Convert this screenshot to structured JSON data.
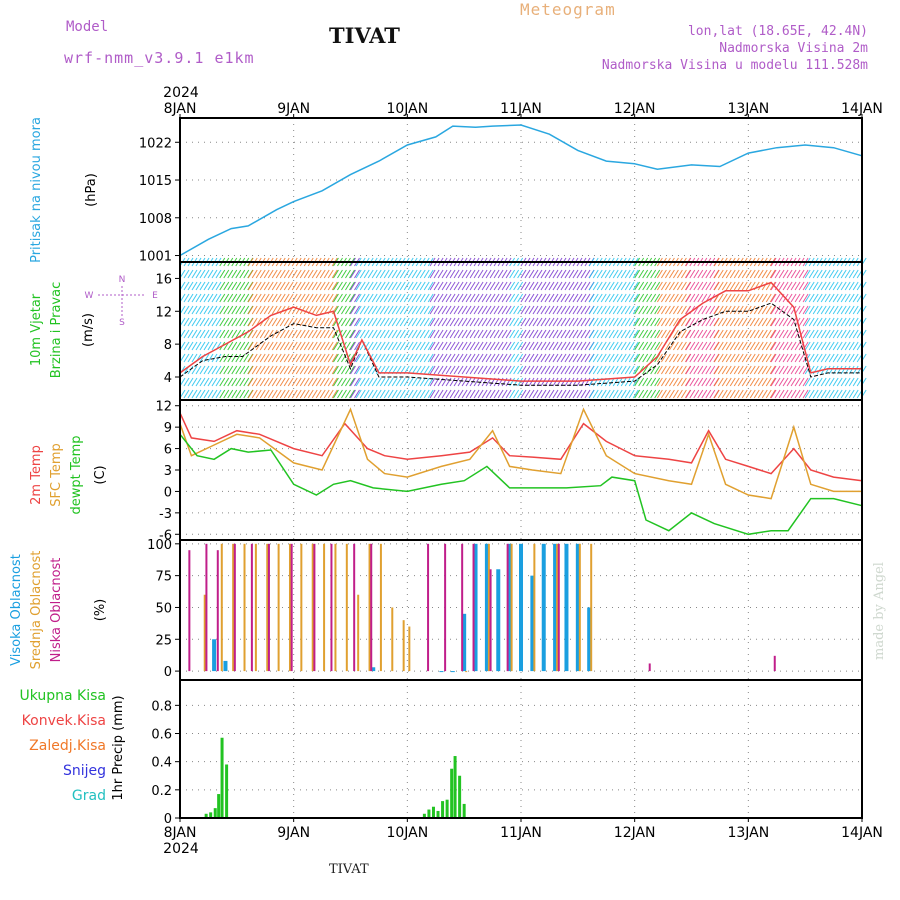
{
  "header": {
    "model_label": "Model",
    "model_name": "wrf-nmm_v3.9.1 e1km",
    "title": "TIVAT",
    "meteogram": "Meteogram",
    "lonlat": "lon,lat (18.65E, 42.4N)",
    "altitude": "Nadmorska Visina 2m",
    "model_altitude": "Nadmorska Visina u modelu 111.528m"
  },
  "footer": {
    "station": "TIVAT",
    "credit": "made by Angel"
  },
  "time_axis": {
    "year": "2024",
    "labels": [
      "8JAN",
      "9JAN",
      "10JAN",
      "11JAN",
      "12JAN",
      "13JAN",
      "14JAN"
    ]
  },
  "colors": {
    "pressure": "#2aa7e0",
    "temp2m": "#ee4444",
    "sfc_temp": "#e0a030",
    "dewpoint": "#22c322",
    "high_cloud": "#1a9fe0",
    "mid_cloud": "#e0a030",
    "low_cloud": "#c01e8a",
    "precip_total": "#22c322",
    "precip_conv": "#ee4444",
    "precip_frozen": "#f07828",
    "snow": "#3333dd",
    "hail": "#22c0c0",
    "wind_dir_label": "#b05cc8"
  },
  "chart_data": [
    {
      "type": "line",
      "ylabel": "Pritisak na nivou mora",
      "unit": "(hPa)",
      "yticks": [
        1001,
        1008,
        1015,
        1022
      ],
      "ylim": [
        999.8,
        1026.5
      ],
      "grid": true,
      "series": [
        {
          "key": "pressure",
          "x": [
            0,
            0.25,
            0.45,
            0.6,
            0.85,
            1.0,
            1.25,
            1.5,
            1.75,
            2.0,
            2.25,
            2.4,
            2.6,
            2.75,
            3.0,
            3.25,
            3.5,
            3.75,
            4.0,
            4.2,
            4.5,
            4.75,
            5.0,
            5.25,
            5.5,
            5.75,
            6.0
          ],
          "y": [
            1001.0,
            1004.0,
            1006.0,
            1006.5,
            1009.5,
            1011.0,
            1013.0,
            1016.0,
            1018.5,
            1021.5,
            1023.0,
            1025.0,
            1024.8,
            1025.0,
            1025.2,
            1023.5,
            1020.5,
            1018.5,
            1018.0,
            1017.0,
            1017.8,
            1017.5,
            1020.0,
            1021.0,
            1021.5,
            1021.0,
            1019.5
          ]
        }
      ]
    },
    {
      "type": "line",
      "ylabel_lines": [
        "10m Vjetar",
        "Brzina i Pravac"
      ],
      "unit": "(m/s)",
      "yticks": [
        4,
        8,
        12,
        16
      ],
      "ylim": [
        1.2,
        18.0
      ],
      "grid": false,
      "direction_labels": {
        "n": "N",
        "s": "S",
        "w": "W",
        "e": "E"
      },
      "series": [
        {
          "key": "wind_speed_mean",
          "color": "#000000",
          "x": [
            0,
            0.2,
            0.4,
            0.55,
            0.8,
            1.0,
            1.2,
            1.35,
            1.5,
            1.6,
            1.75,
            2.0,
            2.5,
            3.0,
            3.5,
            4.0,
            4.2,
            4.4,
            4.6,
            4.8,
            5.0,
            5.2,
            5.4,
            5.55,
            5.7,
            6.0
          ],
          "y": [
            4.0,
            6.0,
            6.5,
            6.5,
            9.0,
            10.5,
            10.0,
            10.0,
            5.0,
            8.5,
            4.0,
            4.0,
            3.5,
            3.0,
            3.0,
            3.5,
            5.5,
            9.5,
            11.0,
            12.0,
            12.0,
            13.0,
            11.0,
            4.0,
            4.5,
            4.5
          ]
        },
        {
          "key": "wind_speed_gust",
          "color": "#ee4444",
          "x": [
            0,
            0.2,
            0.4,
            0.6,
            0.8,
            1.0,
            1.2,
            1.35,
            1.5,
            1.6,
            1.75,
            2.0,
            2.5,
            3.0,
            3.5,
            4.0,
            4.2,
            4.4,
            4.6,
            4.8,
            5.0,
            5.2,
            5.4,
            5.55,
            5.7,
            6.0
          ],
          "y": [
            4.5,
            6.5,
            8.0,
            9.5,
            11.5,
            12.5,
            11.5,
            12.0,
            5.5,
            8.5,
            4.5,
            4.5,
            4.0,
            3.5,
            3.5,
            4.0,
            6.5,
            11.0,
            13.0,
            14.5,
            14.5,
            15.5,
            12.5,
            4.5,
            5.0,
            5.0
          ]
        }
      ]
    },
    {
      "type": "line",
      "ylabel_lines": [
        "2m Temp",
        "SFC Temp",
        "dewpt Temp"
      ],
      "unit": "(C)",
      "yticks": [
        -6,
        -3,
        0,
        3,
        6,
        9,
        12
      ],
      "ylim": [
        -6.8,
        12.8
      ],
      "grid": true,
      "series": [
        {
          "key": "temp2m",
          "x": [
            0,
            0.1,
            0.3,
            0.5,
            0.7,
            1.0,
            1.25,
            1.45,
            1.65,
            1.8,
            2.0,
            2.3,
            2.55,
            2.75,
            2.9,
            3.1,
            3.35,
            3.55,
            3.75,
            4.0,
            4.3,
            4.5,
            4.65,
            4.8,
            5.0,
            5.2,
            5.4,
            5.55,
            5.75,
            6.0
          ],
          "y": [
            11.0,
            7.5,
            7.0,
            8.5,
            8.0,
            6.0,
            5.0,
            9.5,
            6.0,
            5.0,
            4.5,
            5.0,
            5.5,
            7.5,
            5.0,
            4.8,
            4.5,
            9.5,
            7.0,
            5.0,
            4.5,
            4.0,
            8.5,
            4.5,
            3.5,
            2.5,
            6.0,
            3.0,
            2.0,
            1.5
          ]
        },
        {
          "key": "sfc_temp",
          "x": [
            0,
            0.1,
            0.3,
            0.5,
            0.7,
            1.0,
            1.25,
            1.5,
            1.65,
            1.8,
            2.0,
            2.3,
            2.55,
            2.75,
            2.9,
            3.1,
            3.35,
            3.55,
            3.75,
            4.0,
            4.3,
            4.5,
            4.65,
            4.8,
            5.0,
            5.2,
            5.4,
            5.55,
            5.75,
            6.0
          ],
          "y": [
            9.5,
            5.0,
            6.5,
            8.0,
            7.5,
            4.0,
            3.0,
            11.5,
            4.5,
            2.5,
            2.0,
            3.5,
            4.5,
            8.5,
            3.5,
            3.0,
            2.5,
            11.5,
            5.0,
            2.5,
            1.5,
            1.0,
            8.0,
            1.0,
            -0.5,
            -1.0,
            9.0,
            1.0,
            0.0,
            0.0
          ]
        },
        {
          "key": "dewpoint",
          "x": [
            0,
            0.15,
            0.3,
            0.45,
            0.6,
            0.8,
            1.0,
            1.2,
            1.35,
            1.5,
            1.7,
            2.0,
            2.3,
            2.5,
            2.7,
            2.9,
            3.1,
            3.4,
            3.7,
            3.8,
            4.0,
            4.1,
            4.3,
            4.5,
            4.7,
            5.0,
            5.2,
            5.35,
            5.55,
            5.75,
            6.0
          ],
          "y": [
            8.0,
            5.0,
            4.5,
            6.0,
            5.5,
            5.8,
            1.0,
            -0.5,
            1.0,
            1.5,
            0.5,
            0.0,
            1.0,
            1.5,
            3.5,
            0.5,
            0.5,
            0.5,
            0.8,
            2.0,
            1.5,
            -4.0,
            -5.5,
            -3.0,
            -4.5,
            -6.0,
            -5.5,
            -5.5,
            -1.0,
            -1.0,
            -2.0
          ]
        }
      ]
    },
    {
      "type": "bar",
      "ylabel_lines": [
        "Visoka Oblacnost",
        "Srednja Oblacnost",
        "Niska Oblacnost"
      ],
      "unit": "(%)",
      "yticks": [
        0,
        25,
        50,
        75,
        100
      ],
      "ylim": [
        -7,
        103
      ],
      "grid": true,
      "series": [
        {
          "key": "high_cloud",
          "x": [
            0.3,
            0.4,
            1.7,
            2.3,
            2.4,
            2.5,
            2.6,
            2.7,
            2.8,
            2.9,
            3.0,
            3.1,
            3.2,
            3.3,
            3.4,
            3.5,
            3.6
          ],
          "y": [
            25,
            8,
            3,
            0,
            0,
            45,
            100,
            100,
            80,
            100,
            100,
            75,
            100,
            100,
            100,
            100,
            50
          ]
        },
        {
          "key": "mid_cloud",
          "x": [
            0.2,
            0.35,
            0.45,
            0.55,
            0.65,
            0.75,
            0.85,
            0.95,
            1.05,
            1.15,
            1.25,
            1.35,
            1.45,
            1.55,
            1.65,
            1.75,
            1.85,
            1.95,
            2.0,
            2.5,
            2.7,
            2.9,
            3.1,
            3.3,
            3.5,
            3.6
          ],
          "y": [
            60,
            100,
            100,
            100,
            100,
            100,
            100,
            100,
            100,
            100,
            100,
            100,
            100,
            60,
            100,
            100,
            50,
            40,
            35,
            0,
            100,
            100,
            100,
            100,
            100,
            100
          ]
        },
        {
          "key": "low_cloud",
          "x": [
            0.1,
            0.25,
            0.35,
            0.5,
            0.65,
            0.8,
            1.0,
            1.2,
            1.35,
            1.55,
            1.7,
            2.2,
            2.35,
            2.5,
            2.6,
            2.75,
            2.9,
            3.35,
            4.15,
            5.25
          ],
          "y": [
            95,
            100,
            95,
            100,
            100,
            100,
            100,
            100,
            100,
            100,
            100,
            100,
            100,
            100,
            100,
            80,
            100,
            100,
            6,
            12
          ]
        }
      ]
    },
    {
      "type": "bar",
      "ylabel_lines": [
        "1hr Precip (mm)"
      ],
      "legend_left": [
        "Ukupna Kisa",
        "Konvek.Kisa",
        "Zaledj.Kisa",
        "Snijeg",
        "Grad"
      ],
      "yticks": [
        0,
        0.2,
        0.4,
        0.6,
        0.8
      ],
      "ylim": [
        0,
        0.98
      ],
      "grid": true,
      "series": [
        {
          "key": "precip_total",
          "x": [
            0.23,
            0.27,
            0.31,
            0.34,
            0.37,
            0.41,
            2.15,
            2.19,
            2.23,
            2.27,
            2.31,
            2.35,
            2.39,
            2.42,
            2.46,
            2.5
          ],
          "y": [
            0.03,
            0.04,
            0.07,
            0.17,
            0.57,
            0.38,
            0.03,
            0.06,
            0.08,
            0.05,
            0.12,
            0.13,
            0.35,
            0.44,
            0.3,
            0.1
          ]
        }
      ]
    }
  ]
}
